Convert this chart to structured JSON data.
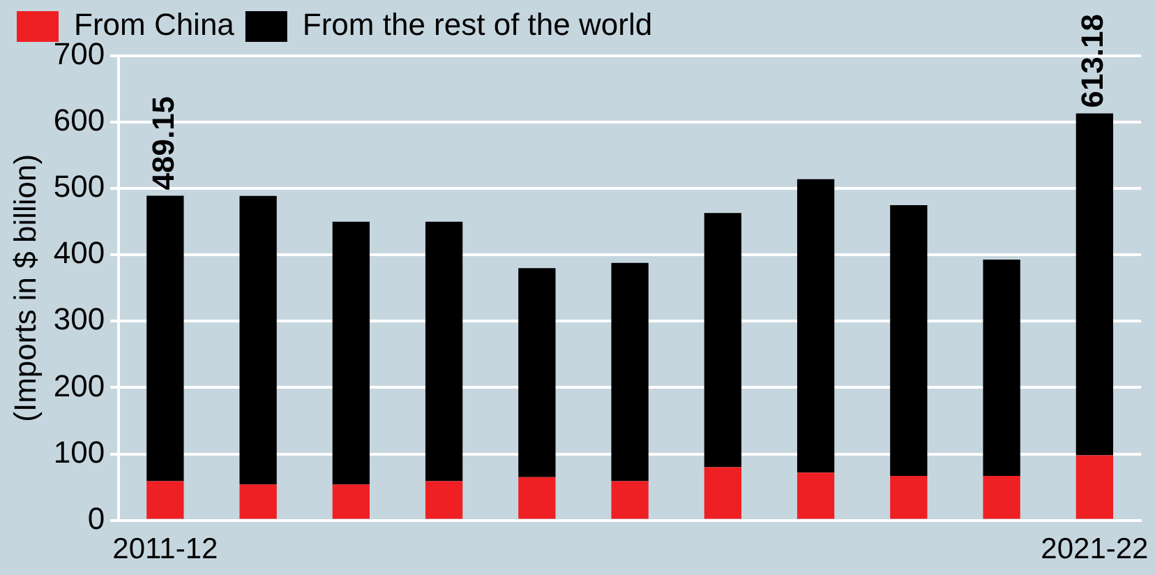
{
  "chart_data": {
    "type": "bar",
    "stacked": true,
    "ylabel": "(Imports in $ billion)",
    "categories": [
      "2011-12",
      null,
      null,
      null,
      null,
      null,
      null,
      null,
      null,
      null,
      "2021-22"
    ],
    "series": [
      {
        "name": "From China",
        "color": "#ee2024",
        "values": [
          59,
          54,
          54,
          59,
          65,
          59,
          80,
          72,
          67,
          67,
          98
        ]
      },
      {
        "name": "From the rest of the world",
        "color": "#000000",
        "values": [
          430.15,
          435,
          396,
          391,
          315,
          329,
          383,
          442,
          408,
          326,
          515.18
        ]
      }
    ],
    "totals": [
      "489.15",
      null,
      null,
      null,
      null,
      null,
      null,
      null,
      null,
      null,
      "613.18"
    ],
    "ylim": [
      0,
      700
    ],
    "yticks": [
      0,
      100,
      200,
      300,
      400,
      500,
      600,
      700
    ],
    "grid": "y",
    "legend": "top left"
  }
}
